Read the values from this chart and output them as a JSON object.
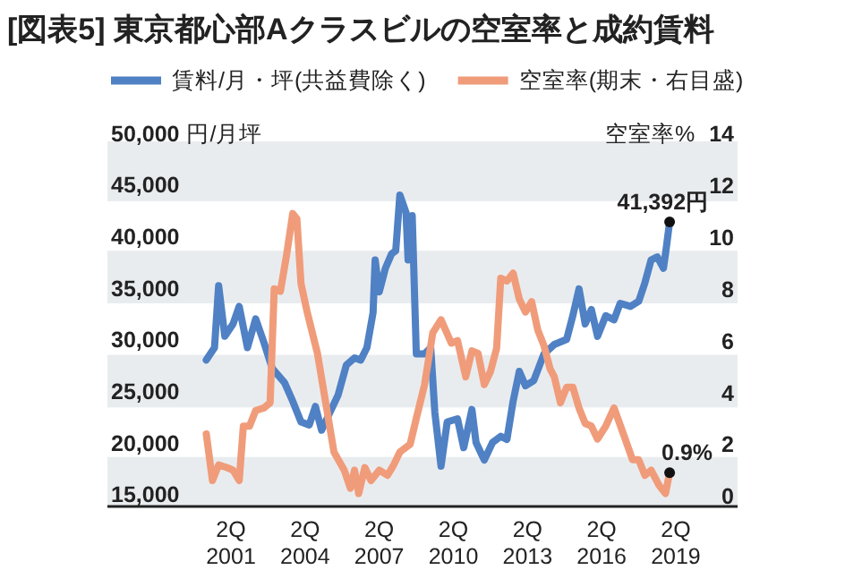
{
  "chart_data": {
    "type": "line",
    "title": "[図表5] 東京都心部Aクラスビルの空室率と成約賃料",
    "ylabel": "円/月坪",
    "y2label": "空室率%",
    "xlim": [
      "1996-04",
      "2021-10"
    ],
    "xticks": [
      {
        "value": "2001-04",
        "label": "2Q 2001"
      },
      {
        "value": "2004-04",
        "label": "2Q 2004"
      },
      {
        "value": "2007-04",
        "label": "2Q 2007"
      },
      {
        "value": "2010-04",
        "label": "2Q 2010"
      },
      {
        "value": "2013-04",
        "label": "2Q 2013"
      },
      {
        "value": "2016-04",
        "label": "2Q 2016"
      },
      {
        "value": "2019-04",
        "label": "2Q 2019"
      }
    ],
    "ylim": [
      13800,
      50000
    ],
    "yticks": [
      {
        "value": 15000,
        "label": "15,000"
      },
      {
        "value": 20000,
        "label": "20,000"
      },
      {
        "value": 25000,
        "label": "25,000"
      },
      {
        "value": 30000,
        "label": "30,000"
      },
      {
        "value": 35000,
        "label": "35,000"
      },
      {
        "value": 40000,
        "label": "40,000"
      },
      {
        "value": 45000,
        "label": "45,000"
      },
      {
        "value": 50000,
        "label": "50,000"
      }
    ],
    "y2lim": [
      -0.4,
      14
    ],
    "y2ticks": [
      0,
      2,
      4,
      6,
      8,
      10,
      12,
      14
    ],
    "bands": [
      {
        "axis": "y",
        "from": 13800,
        "to": 18600,
        "color": "#e9ecef"
      },
      {
        "axis": "y",
        "from": 23400,
        "to": 28500,
        "color": "#e9ecef"
      },
      {
        "axis": "y",
        "from": 33500,
        "to": 38600,
        "color": "#e9ecef"
      },
      {
        "axis": "y",
        "from": 43400,
        "to": 49200,
        "color": "#e9ecef"
      }
    ],
    "legend": "top left",
    "series": [
      {
        "name": "賃料/月・坪(共益費除く)",
        "color": "#4f81c4",
        "x": [
          "2000-04",
          "2000-08",
          "2000-10",
          "2001-01",
          "2001-05",
          "2001-08",
          "2001-12",
          "2002-04",
          "2002-08",
          "2002-12",
          "2003-06",
          "2003-10",
          "2004-02",
          "2004-06",
          "2004-09",
          "2004-12",
          "2005-04",
          "2005-08",
          "2005-12",
          "2006-04",
          "2006-07",
          "2006-10",
          "2007-01",
          "2007-02",
          "2007-04",
          "2007-07",
          "2007-10",
          "2007-12",
          "2008-02",
          "2008-05",
          "2008-06",
          "2008-08",
          "2008-10",
          "2009-02",
          "2009-05",
          "2009-07",
          "2009-10",
          "2010-01",
          "2010-06",
          "2010-09",
          "2011-01",
          "2011-03",
          "2011-07",
          "2011-11",
          "2012-03",
          "2012-06",
          "2012-09",
          "2012-12",
          "2013-03",
          "2013-07",
          "2013-12",
          "2014-05",
          "2014-11",
          "2015-02",
          "2015-05",
          "2015-08",
          "2015-11",
          "2016-02",
          "2016-06",
          "2016-10",
          "2017-01",
          "2017-06",
          "2017-10",
          "2018-01",
          "2018-04",
          "2018-07",
          "2018-10",
          "2018-11",
          "2019-01"
        ],
        "values": [
          28000,
          29200,
          35200,
          30300,
          31500,
          33200,
          29200,
          32000,
          29700,
          27200,
          25800,
          24000,
          22000,
          21700,
          23500,
          21200,
          22900,
          24600,
          27500,
          28200,
          28000,
          29200,
          32600,
          37700,
          34600,
          36900,
          38300,
          38600,
          44000,
          42300,
          37700,
          42000,
          28600,
          28600,
          29200,
          22900,
          17700,
          22000,
          22300,
          19500,
          23200,
          20000,
          18300,
          20000,
          20600,
          20300,
          24000,
          26900,
          25500,
          26000,
          28600,
          29500,
          30000,
          32300,
          34900,
          31500,
          32900,
          30300,
          32300,
          31900,
          33500,
          33200,
          33700,
          35500,
          37700,
          38000,
          36900,
          38300,
          41392
        ]
      },
      {
        "name": "空室率(期末・右目盛)",
        "color": "#f09c7a",
        "axis": "y2",
        "x": [
          "2000-04",
          "2000-07",
          "2000-10",
          "2001-02",
          "2001-05",
          "2001-08",
          "2001-10",
          "2002-01",
          "2002-04",
          "2002-08",
          "2002-11",
          "2003-01",
          "2003-04",
          "2003-07",
          "2003-10",
          "2003-12",
          "2004-02",
          "2004-05",
          "2004-10",
          "2005-02",
          "2005-06",
          "2005-11",
          "2006-02",
          "2006-04",
          "2006-06",
          "2006-09",
          "2006-12",
          "2007-04",
          "2007-08",
          "2007-11",
          "2008-02",
          "2008-07",
          "2008-10",
          "2009-02",
          "2009-06",
          "2009-10",
          "2010-03",
          "2010-06",
          "2010-10",
          "2011-01",
          "2011-04",
          "2011-07",
          "2011-10",
          "2012-01",
          "2012-03",
          "2012-06",
          "2012-09",
          "2012-12",
          "2013-03",
          "2013-06",
          "2013-09",
          "2013-12",
          "2014-03",
          "2014-05",
          "2014-08",
          "2014-11",
          "2015-02",
          "2015-05",
          "2015-08",
          "2015-11",
          "2016-02",
          "2016-06",
          "2016-10",
          "2017-03",
          "2017-07",
          "2017-10",
          "2018-01",
          "2018-04",
          "2018-08",
          "2018-11",
          "2019-01"
        ],
        "values": [
          2.4,
          0.6,
          1.2,
          1.1,
          1.0,
          0.6,
          2.7,
          2.7,
          3.3,
          3.4,
          3.6,
          8.0,
          7.9,
          9.3,
          10.9,
          10.7,
          8.2,
          7.1,
          5.5,
          3.6,
          1.7,
          1.0,
          0.3,
          1.0,
          0.1,
          1.1,
          0.6,
          1.0,
          0.8,
          1.2,
          1.7,
          2.0,
          3.0,
          4.3,
          6.3,
          6.8,
          5.9,
          6.0,
          4.6,
          5.6,
          5.5,
          4.3,
          4.8,
          5.7,
          8.4,
          8.3,
          8.6,
          7.6,
          7.1,
          7.5,
          6.4,
          5.8,
          4.9,
          4.6,
          3.6,
          4.2,
          4.2,
          3.4,
          2.8,
          2.7,
          2.2,
          2.7,
          3.4,
          2.3,
          1.4,
          1.4,
          0.8,
          1.0,
          0.4,
          0.1,
          0.9
        ]
      }
    ],
    "annotations": [
      {
        "text": "41,392円",
        "x": "2019-01",
        "y": 41392
      },
      "0.9%"
    ]
  }
}
